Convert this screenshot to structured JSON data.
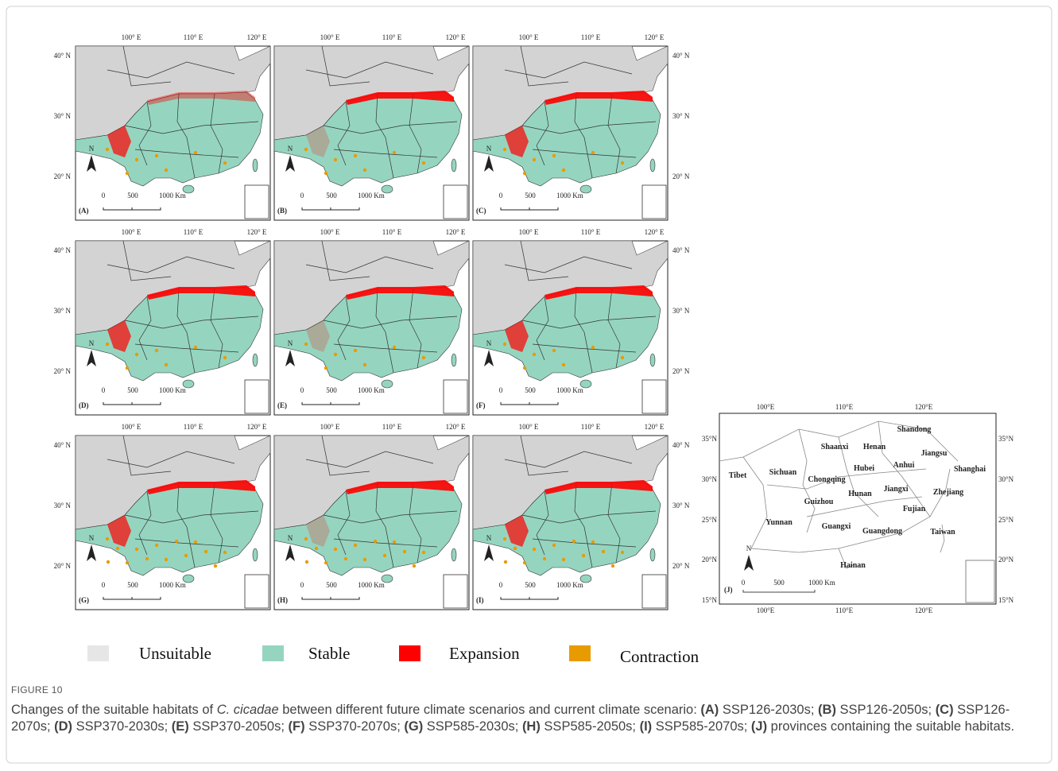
{
  "figure": {
    "panels": [
      "(A)",
      "(B)",
      "(C)",
      "(D)",
      "(E)",
      "(F)",
      "(G)",
      "(H)",
      "(I)"
    ],
    "lon_labels": [
      "100° E",
      "110° E",
      "120° E"
    ],
    "lat_labels": [
      "40° N",
      "30° N",
      "20° N"
    ],
    "scale_labels": [
      "0",
      "500",
      "1000 Km"
    ],
    "north": "N",
    "panel_j": {
      "label": "(J)",
      "lon_labels": [
        "100°E",
        "110°E",
        "120°E"
      ],
      "lat_labels": [
        "35°N",
        "30°N",
        "25°N",
        "20°N",
        "15°N"
      ],
      "scale_labels": [
        "0",
        "500",
        "1000 Km"
      ],
      "provinces": [
        "Shandong",
        "Shaanxi",
        "Henan",
        "Jiangsu",
        "Tibet",
        "Sichuan",
        "Hubei",
        "Anhui",
        "Shanghai",
        "Chongqing",
        "Hunan",
        "Jiangxi",
        "Zhejiang",
        "Guizhou",
        "Fujian",
        "Yunnan",
        "Guangxi",
        "Guangdong",
        "Taiwan",
        "Hainan"
      ]
    },
    "legend": [
      {
        "name": "Unsuitable",
        "color": "#e6e6e6"
      },
      {
        "name": "Stable",
        "color": "#95d5c0"
      },
      {
        "name": "Expansion",
        "color": "#ff0000"
      },
      {
        "name": "Contraction",
        "color": "#e89b00"
      }
    ]
  },
  "caption": {
    "figure_label": "FIGURE 10",
    "intro": "Changes of the suitable habitats of ",
    "species": "C. cicadae",
    "rest": " between different future climate scenarios and current climate scenario: ",
    "items": [
      {
        "label": "(A)",
        "text": " SSP126-2030s; "
      },
      {
        "label": "(B)",
        "text": " SSP126-2050s; "
      },
      {
        "label": "(C)",
        "text": " SSP126-2070s; "
      },
      {
        "label": "(D)",
        "text": " SSP370-2030s; "
      },
      {
        "label": "(E)",
        "text": " SSP370-2050s; "
      },
      {
        "label": "(F)",
        "text": " SSP370-2070s; "
      },
      {
        "label": "(G)",
        "text": " SSP585-2030s; "
      },
      {
        "label": "(H)",
        "text": " SSP585-2050s; "
      },
      {
        "label": "(I)",
        "text": " SSP585-2070s; "
      },
      {
        "label": "(J)",
        "text": " provinces containing the suitable habitats."
      }
    ]
  }
}
